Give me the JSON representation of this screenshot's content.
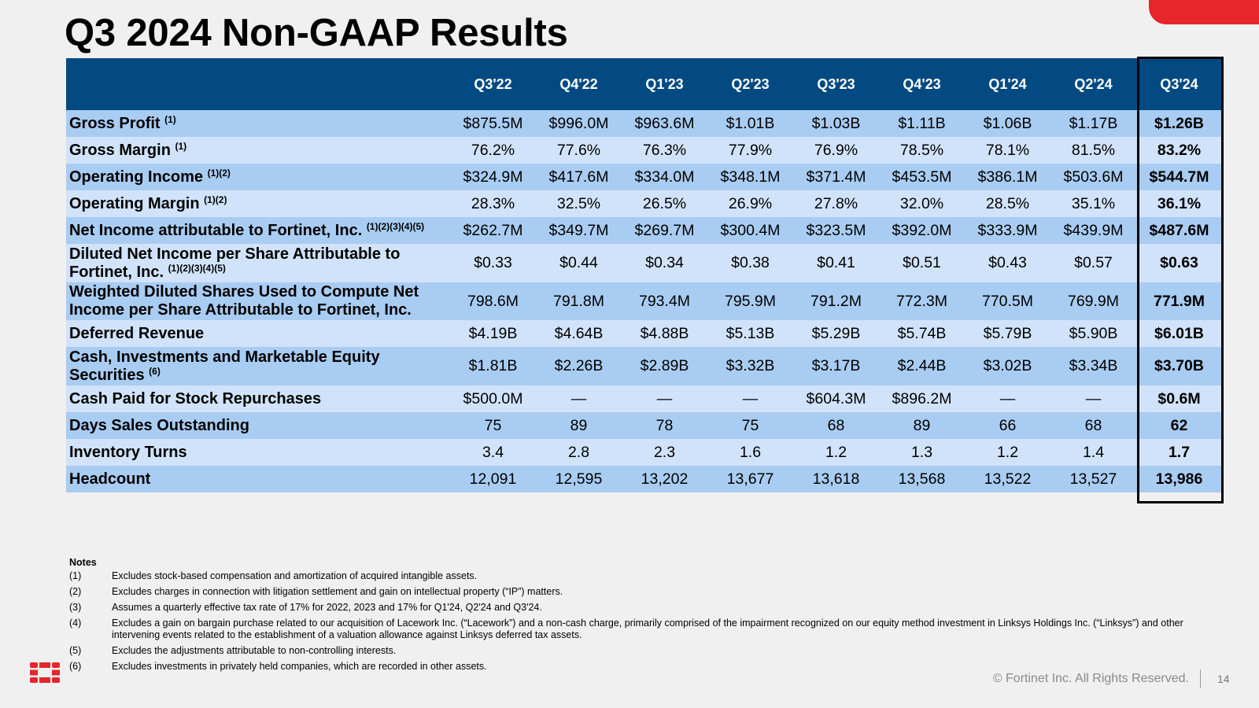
{
  "slide": {
    "title": "Q3 2024 Non-GAAP Results",
    "copyright": "© Fortinet Inc. All Rights Reserved.",
    "page_number": "14",
    "accent_color": "#e5262a",
    "logo_icon": "fortinet-logo-icon"
  },
  "table": {
    "columns": [
      "Q3'22",
      "Q4'22",
      "Q1'23",
      "Q2'23",
      "Q3'23",
      "Q4'23",
      "Q1'24",
      "Q2'24",
      "Q3'24"
    ],
    "header_color": "#034a82",
    "rows": [
      {
        "label": "Gross Profit",
        "notes": "(1)",
        "values": [
          "$875.5M",
          "$996.0M",
          "$963.6M",
          "$1.01B",
          "$1.03B",
          "$1.11B",
          "$1.06B",
          "$1.17B",
          "$1.26B"
        ]
      },
      {
        "label": "Gross Margin",
        "notes": "(1)",
        "values": [
          "76.2%",
          "77.6%",
          "76.3%",
          "77.9%",
          "76.9%",
          "78.5%",
          "78.1%",
          "81.5%",
          "83.2%"
        ]
      },
      {
        "label": "Operating Income",
        "notes": "(1)(2)",
        "values": [
          "$324.9M",
          "$417.6M",
          "$334.0M",
          "$348.1M",
          "$371.4M",
          "$453.5M",
          "$386.1M",
          "$503.6M",
          "$544.7M"
        ]
      },
      {
        "label": "Operating Margin",
        "notes": "(1)(2)",
        "values": [
          "28.3%",
          "32.5%",
          "26.5%",
          "26.9%",
          "27.8%",
          "32.0%",
          "28.5%",
          "35.1%",
          "36.1%"
        ]
      },
      {
        "label": "Net Income attributable to Fortinet, Inc.",
        "notes": "(1)(2)(3)(4)(5)",
        "values": [
          "$262.7M",
          "$349.7M",
          "$269.7M",
          "$300.4M",
          "$323.5M",
          "$392.0M",
          "$333.9M",
          "$439.9M",
          "$487.6M"
        ]
      },
      {
        "label": "Diluted Net Income per Share Attributable to Fortinet, Inc.",
        "notes": "(1)(2)(3)(4)(5)",
        "values": [
          "$0.33",
          "$0.44",
          "$0.34",
          "$0.38",
          "$0.41",
          "$0.51",
          "$0.43",
          "$0.57",
          "$0.63"
        ]
      },
      {
        "label": "Weighted Diluted Shares Used to Compute Net Income per Share Attributable to Fortinet, Inc.",
        "notes": "",
        "values": [
          "798.6M",
          "791.8M",
          "793.4M",
          "795.9M",
          "791.2M",
          "772.3M",
          "770.5M",
          "769.9M",
          "771.9M"
        ]
      },
      {
        "label": "Deferred Revenue",
        "notes": "",
        "values": [
          "$4.19B",
          "$4.64B",
          "$4.88B",
          "$5.13B",
          "$5.29B",
          "$5.74B",
          "$5.79B",
          "$5.90B",
          "$6.01B"
        ]
      },
      {
        "label": "Cash, Investments and Marketable Equity Securities",
        "notes": "(6)",
        "values": [
          "$1.81B",
          "$2.26B",
          "$2.89B",
          "$3.32B",
          "$3.17B",
          "$2.44B",
          "$3.02B",
          "$3.34B",
          "$3.70B"
        ]
      },
      {
        "label": "Cash Paid for Stock Repurchases",
        "notes": "",
        "values": [
          "$500.0M",
          "—",
          "—",
          "—",
          "$604.3M",
          "$896.2M",
          "—",
          "—",
          "$0.6M"
        ]
      },
      {
        "label": "Days Sales Outstanding",
        "notes": "",
        "values": [
          "75",
          "89",
          "78",
          "75",
          "68",
          "89",
          "66",
          "68",
          "62"
        ]
      },
      {
        "label": "Inventory Turns",
        "notes": "",
        "values": [
          "3.4",
          "2.8",
          "2.3",
          "1.6",
          "1.2",
          "1.3",
          "1.2",
          "1.4",
          "1.7"
        ]
      },
      {
        "label": "Headcount",
        "notes": "",
        "values": [
          "12,091",
          "12,595",
          "13,202",
          "13,677",
          "13,618",
          "13,568",
          "13,522",
          "13,527",
          "13,986"
        ]
      }
    ]
  },
  "notes": {
    "title": "Notes",
    "items": [
      {
        "num": "(1)",
        "text": "Excludes stock-based compensation and amortization of acquired intangible assets."
      },
      {
        "num": "(2)",
        "text": "Excludes charges in connection with litigation settlement and gain on intellectual property (“IP”) matters."
      },
      {
        "num": "(3)",
        "text": "Assumes a quarterly effective tax rate of 17% for 2022, 2023 and 17% for Q1'24, Q2'24 and Q3'24."
      },
      {
        "num": "(4)",
        "text": "Excludes a gain on bargain purchase related to our acquisition of Lacework Inc. (“Lacework”) and a non-cash charge, primarily comprised of the impairment recognized on our equity method investment in Linksys Holdings Inc. (“Linksys”) and other intervening events related to the establishment of a valuation allowance against Linksys deferred tax assets."
      },
      {
        "num": "(5)",
        "text": "Excludes the adjustments attributable to non-controlling interests."
      },
      {
        "num": "(6)",
        "text": "Excludes investments in privately held companies, which are recorded in other assets."
      }
    ]
  }
}
